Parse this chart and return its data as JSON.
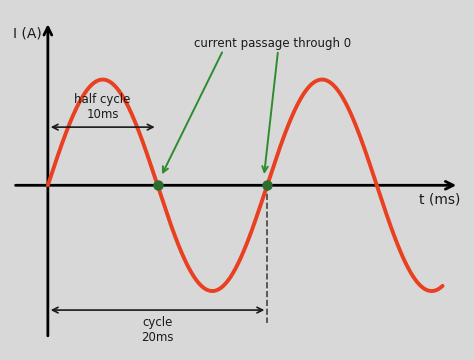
{
  "background_color": "#d8d8d8",
  "wave_color": "#e84020",
  "wave_linewidth": 2.8,
  "axis_color": "#000000",
  "green_dot_color": "#2d6e2d",
  "green_arrow_color": "#2d8c2d",
  "dashed_line_color": "#444444",
  "text_color": "#1a1a1a",
  "ylabel": "I (A)",
  "xlabel": "t (ms)",
  "half_cycle_label": "half cycle\n10ms",
  "cycle_label": "cycle\n20ms",
  "passage_label": "current passage through 0",
  "zero_crossing_1": 10,
  "zero_crossing_2": 20,
  "amplitude": 1.0,
  "period": 20,
  "x_data_start": -1.5,
  "x_data_end": 36,
  "xlim_left": -3.5,
  "xlim_right": 38,
  "ylim_bottom": -1.55,
  "ylim_top": 1.65
}
